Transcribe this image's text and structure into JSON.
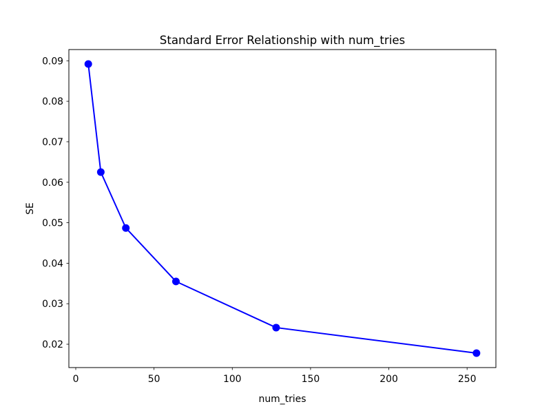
{
  "figure": {
    "background": "#ffffff",
    "axes_edge_color": "#000000",
    "text_color": "#000000"
  },
  "chart_data": {
    "type": "line",
    "title": "Standard Error Relationship with num_tries",
    "xlabel": "num_tries",
    "ylabel": "SE",
    "x": [
      8,
      16,
      32,
      64,
      128,
      256
    ],
    "y": [
      0.0892,
      0.0625,
      0.0487,
      0.0355,
      0.0241,
      0.0178
    ],
    "series_color": "#0000ff",
    "marker": "circle",
    "marker_radius": 5.5,
    "line_width": 2,
    "xlim": [
      -4.4,
      268.4
    ],
    "ylim": [
      0.01423,
      0.09277
    ],
    "xticks": [
      0,
      50,
      100,
      150,
      200,
      250
    ],
    "yticks": [
      0.02,
      0.03,
      0.04,
      0.05,
      0.06,
      0.07,
      0.08,
      0.09
    ],
    "ytick_decimals": 2,
    "grid": false,
    "legend": null
  }
}
